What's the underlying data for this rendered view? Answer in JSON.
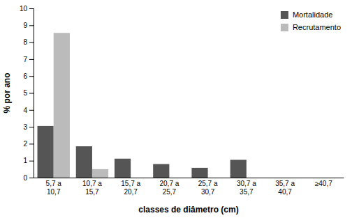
{
  "chart_data": {
    "type": "bar",
    "categories": [
      "5,7 a\n10,7",
      "10,7 a\n15,7",
      "15,7 a\n20,7",
      "20,7 a\n25,7",
      "25,7 a\n30,7",
      "30,7 a\n35,7",
      "35,7 a\n40,7",
      "≥40,7"
    ],
    "series": [
      {
        "name": "Mortalidade",
        "color": "#555555",
        "values": [
          3.05,
          1.85,
          1.12,
          0.8,
          0.58,
          1.05,
          0.0,
          0.0
        ]
      },
      {
        "name": "Recrutamento",
        "color": "#bbbbbb",
        "values": [
          8.55,
          0.5,
          0.0,
          0.0,
          0.0,
          0.0,
          0.0,
          0.0
        ]
      }
    ],
    "xlabel": "classes de diâmetro (cm)",
    "ylabel": "% por ano",
    "ylim": [
      0,
      10
    ],
    "yticks": [
      0,
      1,
      2,
      3,
      4,
      5,
      6,
      7,
      8,
      9,
      10
    ],
    "grid": false,
    "legend": "upper right"
  }
}
